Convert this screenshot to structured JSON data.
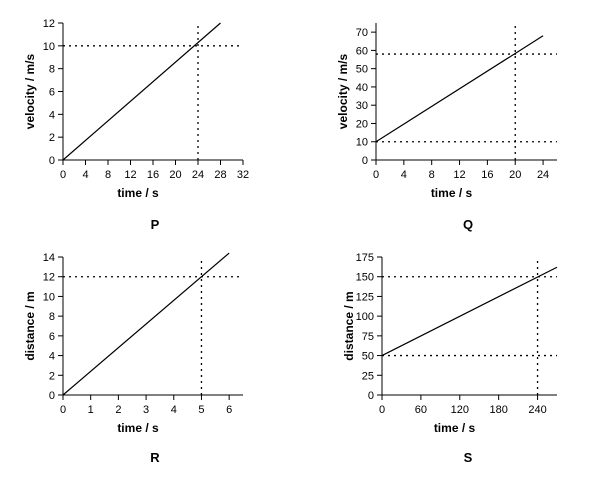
{
  "chart_data": [
    {
      "type": "line",
      "panel_label": "P",
      "xlabel": "time / s",
      "ylabel": "velocity / m/s",
      "xlim": [
        0,
        32
      ],
      "ylim": [
        0,
        12
      ],
      "xticks": [
        0,
        4,
        8,
        12,
        16,
        20,
        24,
        28,
        32
      ],
      "yticks": [
        0,
        2,
        4,
        6,
        8,
        10,
        12
      ],
      "series": [
        {
          "points": [
            [
              0,
              0
            ],
            [
              28,
              12
            ]
          ]
        }
      ],
      "reference_lines": {
        "horizontal": [
          10
        ],
        "vertical": [
          24
        ]
      },
      "grid": false
    },
    {
      "type": "line",
      "panel_label": "Q",
      "xlabel": "time / s",
      "ylabel": "velocity / m/s",
      "xlim": [
        0,
        26
      ],
      "ylim": [
        0,
        75
      ],
      "xticks": [
        0,
        4,
        8,
        12,
        16,
        20,
        24
      ],
      "yticks": [
        0,
        10,
        20,
        30,
        40,
        50,
        60,
        70
      ],
      "series": [
        {
          "points": [
            [
              0,
              10
            ],
            [
              24,
              68
            ]
          ]
        }
      ],
      "reference_lines": {
        "horizontal": [
          10,
          58
        ],
        "vertical": [
          20
        ]
      },
      "grid": false
    },
    {
      "type": "line",
      "panel_label": "R",
      "xlabel": "time / s",
      "ylabel": "distance / m",
      "xlim": [
        0,
        6.5
      ],
      "ylim": [
        0,
        14
      ],
      "xticks": [
        0,
        1,
        2,
        3,
        4,
        5,
        6
      ],
      "yticks": [
        0,
        2,
        4,
        6,
        8,
        10,
        12,
        14
      ],
      "series": [
        {
          "points": [
            [
              0,
              0
            ],
            [
              6,
              14.4
            ]
          ]
        }
      ],
      "reference_lines": {
        "horizontal": [
          12
        ],
        "vertical": [
          5
        ]
      },
      "grid": false
    },
    {
      "type": "line",
      "panel_label": "S",
      "xlabel": "time / s",
      "ylabel": "distance / m",
      "xlim": [
        0,
        270
      ],
      "ylim": [
        0,
        175
      ],
      "xticks": [
        0,
        60,
        120,
        180,
        240
      ],
      "yticks": [
        0,
        25,
        50,
        75,
        100,
        125,
        150,
        175
      ],
      "series": [
        {
          "points": [
            [
              0,
              50
            ],
            [
              270,
              162
            ]
          ]
        }
      ],
      "reference_lines": {
        "horizontal": [
          50,
          150
        ],
        "vertical": [
          240
        ]
      },
      "grid": false
    }
  ]
}
